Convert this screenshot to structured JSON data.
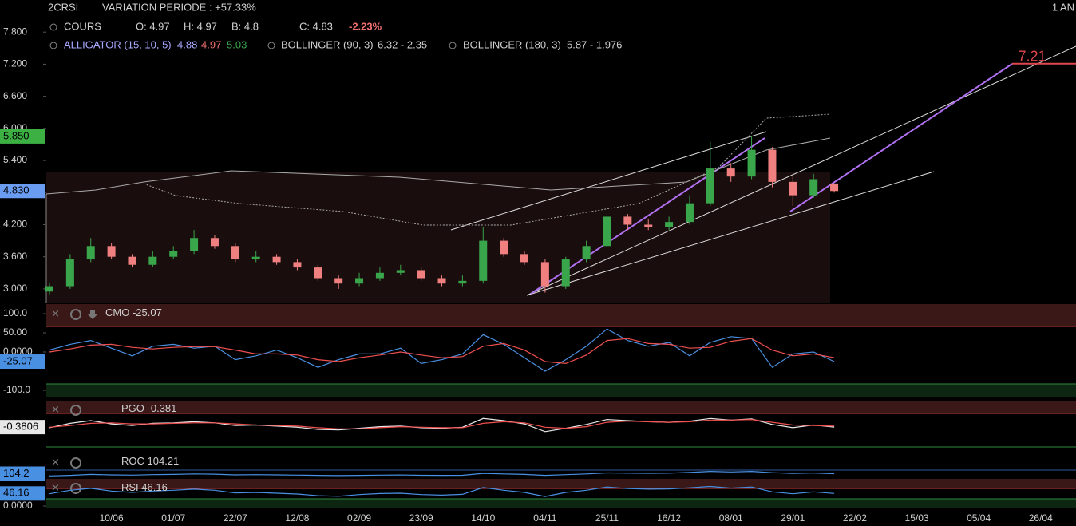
{
  "header": {
    "symbol": "2CRSI",
    "variation": "VARIATION PERIODE : +57.33%",
    "period": "1 AN",
    "cours": "COURS",
    "open": "O: 4.97",
    "high": "H: 4.97",
    "low": "B: 4.8",
    "close": "C: 4.83",
    "change": "-2.23%",
    "alligator": "ALLIGATOR (15, 10, 5)",
    "alligator_values": [
      "4.88",
      "4.97",
      "5.03"
    ],
    "bollinger1": "BOLLINGER (90, 3)",
    "bollinger1_values": "6.32 - 2.35",
    "bollinger2": "BOLLINGER (180, 3)",
    "bollinger2_values": "5.87 - 1.976"
  },
  "chart_data": [
    {
      "type": "candlestick",
      "categories": [
        null,
        null,
        null,
        "10/06",
        null,
        null,
        "01/07",
        null,
        null,
        "22/07",
        null,
        null,
        "12/08",
        null,
        null,
        "02/09",
        null,
        null,
        "23/09",
        null,
        null,
        "14/10",
        null,
        null,
        "04/11",
        null,
        null,
        "25/11",
        null,
        null,
        "16/12",
        null,
        null,
        "08/01",
        null,
        null,
        "29/01",
        null,
        null,
        "22/02",
        null,
        null,
        "15/03",
        null,
        null,
        "05/04",
        null,
        null,
        "26/04"
      ],
      "open": [
        2.95,
        3.05,
        3.55,
        3.8,
        3.6,
        3.45,
        3.6,
        3.7,
        3.95,
        3.8,
        3.55,
        3.6,
        3.5,
        3.4,
        3.2,
        3.1,
        3.2,
        3.3,
        3.35,
        3.2,
        3.1,
        3.15,
        3.9,
        3.65,
        3.5,
        3.05,
        3.55,
        3.8,
        4.35,
        4.2,
        4.15,
        4.25,
        4.6,
        5.25,
        5.1,
        5.6,
        5.0,
        4.75,
        4.97,
        null,
        null,
        null,
        null,
        null,
        null,
        null,
        null,
        null,
        null
      ],
      "high": [
        3.1,
        3.65,
        3.95,
        3.85,
        3.65,
        3.7,
        3.8,
        4.1,
        4.0,
        3.85,
        3.7,
        3.65,
        3.55,
        3.45,
        3.25,
        3.3,
        3.4,
        3.45,
        3.4,
        3.25,
        3.25,
        4.15,
        3.95,
        3.7,
        3.55,
        3.6,
        3.9,
        4.45,
        4.4,
        4.3,
        4.35,
        4.75,
        5.75,
        5.35,
        5.85,
        5.65,
        5.1,
        5.15,
        4.97,
        null,
        null,
        null,
        null,
        null,
        null,
        null,
        null,
        null,
        null
      ],
      "low": [
        2.9,
        3.0,
        3.5,
        3.55,
        3.4,
        3.4,
        3.55,
        3.65,
        3.75,
        3.5,
        3.5,
        3.45,
        3.35,
        3.15,
        3.0,
        3.05,
        3.15,
        3.25,
        3.15,
        3.05,
        3.05,
        3.1,
        3.6,
        3.45,
        2.93,
        3.0,
        3.5,
        3.75,
        4.1,
        4.1,
        4.1,
        4.2,
        4.55,
        5.0,
        5.05,
        4.9,
        4.55,
        4.7,
        4.8,
        null,
        null,
        null,
        null,
        null,
        null,
        null,
        null,
        null,
        null
      ],
      "close": [
        3.05,
        3.55,
        3.8,
        3.6,
        3.45,
        3.6,
        3.7,
        3.95,
        3.8,
        3.55,
        3.6,
        3.5,
        3.4,
        3.2,
        3.1,
        3.2,
        3.3,
        3.35,
        3.2,
        3.1,
        3.15,
        3.9,
        3.65,
        3.5,
        3.05,
        3.55,
        3.8,
        4.35,
        4.2,
        4.15,
        4.25,
        4.6,
        5.25,
        5.1,
        5.6,
        5.0,
        4.75,
        5.05,
        4.83,
        null,
        null,
        null,
        null,
        null,
        null,
        null,
        null,
        null,
        null
      ],
      "up_color": "#3aa64c",
      "down_color": "#f08080",
      "ylim": [
        2.73,
        8.4
      ],
      "yticks": [
        {
          "value": 3,
          "label": "3.000"
        },
        {
          "value": 3.6,
          "label": "3.600"
        },
        {
          "value": 4.2,
          "label": "4.200"
        },
        {
          "value": 4.8,
          "label": "4.800"
        },
        {
          "value": 5.4,
          "label": "5.400"
        },
        {
          "value": 6,
          "label": "6.000"
        },
        {
          "value": 6.6,
          "label": "6.600"
        },
        {
          "value": 7.2,
          "label": "7.200"
        },
        {
          "value": 7.8,
          "label": "7.800"
        }
      ],
      "price_markers": [
        {
          "value": 5.85,
          "label": "5.850",
          "color": "#3cb043"
        },
        {
          "value": 4.83,
          "label": "4.830",
          "color": "#6a9cf2"
        }
      ],
      "annotation": {
        "value": 7.21,
        "label": "7.21",
        "color": "#e0474c"
      }
    },
    {
      "type": "line",
      "legend": "CMO",
      "ylim": [
        -100,
        100
      ],
      "yticks": [
        {
          "value": 100,
          "label": "100.0"
        },
        {
          "value": 50,
          "label": "50.00"
        },
        {
          "value": 0,
          "label": "0.0000"
        },
        {
          "value": -100,
          "label": "-100.0"
        }
      ],
      "value_label": "-25.07",
      "series": [
        {
          "color": "#4a90e2",
          "values": [
            5,
            20,
            30,
            10,
            -10,
            15,
            20,
            10,
            15,
            -20,
            -10,
            5,
            -15,
            -40,
            -20,
            -5,
            -5,
            10,
            -30,
            -20,
            -5,
            45,
            20,
            -15,
            -50,
            -20,
            15,
            60,
            30,
            15,
            25,
            -10,
            25,
            40,
            35,
            -40,
            -5,
            0,
            -25.07
          ]
        },
        {
          "color": "#f05050",
          "values": [
            0,
            8,
            18,
            20,
            12,
            8,
            12,
            14,
            14,
            5,
            -5,
            -5,
            -8,
            -20,
            -25,
            -15,
            -8,
            0,
            -8,
            -15,
            -12,
            15,
            22,
            5,
            -25,
            -30,
            -8,
            30,
            35,
            22,
            20,
            10,
            12,
            28,
            35,
            5,
            -10,
            -5,
            -15
          ]
        }
      ]
    },
    {
      "type": "line",
      "legend": "PGO",
      "ylim": [
        -4,
        4
      ],
      "legend_value_label": "-0.381",
      "axis_value_label": "-0.3806",
      "series": [
        {
          "color": "#e8e8e8",
          "values": [
            -0.5,
            0.3,
            0.8,
            0.2,
            -0.1,
            0.3,
            0.4,
            0.6,
            0.4,
            -0.1,
            0,
            -0.2,
            -0.4,
            -0.8,
            -0.9,
            -0.6,
            -0.3,
            -0.2,
            -0.5,
            -0.6,
            -0.4,
            1.2,
            0.8,
            0.2,
            -1.2,
            -0.6,
            0.1,
            1.0,
            0.8,
            0.6,
            0.5,
            0.7,
            1.2,
            0.9,
            1.1,
            0.1,
            -0.5,
            0,
            -0.3806
          ]
        },
        {
          "color": "#f05050",
          "values": [
            -0.4,
            -0.1,
            0.3,
            0.4,
            0.2,
            0.2,
            0.3,
            0.4,
            0.4,
            0.2,
            0,
            -0.1,
            -0.2,
            -0.5,
            -0.7,
            -0.7,
            -0.5,
            -0.3,
            -0.4,
            -0.5,
            -0.5,
            0.3,
            0.6,
            0.4,
            -0.4,
            -0.6,
            -0.3,
            0.5,
            0.7,
            0.6,
            0.5,
            0.6,
            0.9,
            0.9,
            1.0,
            0.5,
            0,
            -0.1,
            -0.2
          ]
        }
      ]
    },
    {
      "type": "line",
      "legend": "ROC",
      "ylim": [
        0,
        400
      ],
      "legend_value_label": "104.21",
      "axis_value_label": "104.2",
      "series": [
        {
          "color": "#4a90e2",
          "values": [
            60,
            70,
            90,
            80,
            75,
            85,
            90,
            100,
            95,
            80,
            85,
            80,
            75,
            70,
            65,
            70,
            75,
            78,
            72,
            70,
            72,
            110,
            100,
            90,
            70,
            85,
            100,
            120,
            115,
            112,
            115,
            130,
            150,
            140,
            150,
            125,
            110,
            118,
            104.21
          ]
        }
      ]
    },
    {
      "type": "line",
      "legend": "RSI",
      "ylim": [
        0,
        100
      ],
      "value_label": "46.16",
      "yticks": [
        {
          "value": 0,
          "label": "0.0000"
        }
      ],
      "series": [
        {
          "color": "#4a90e2",
          "values": [
            45,
            58,
            65,
            55,
            50,
            55,
            58,
            62,
            58,
            48,
            50,
            47,
            44,
            38,
            36,
            42,
            46,
            47,
            42,
            40,
            43,
            68,
            58,
            50,
            35,
            50,
            58,
            70,
            64,
            62,
            63,
            67,
            72,
            66,
            70,
            52,
            45,
            52,
            46.16
          ]
        }
      ]
    }
  ]
}
